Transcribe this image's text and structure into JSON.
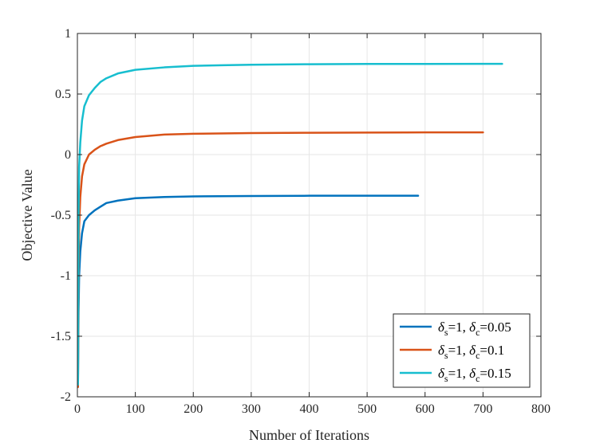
{
  "chart_data": {
    "type": "line",
    "title": "",
    "xlabel": "Number of Iterations",
    "ylabel": "Objective Value",
    "xlim": [
      0,
      800
    ],
    "ylim": [
      -2,
      1
    ],
    "xticks": [
      "0",
      "100",
      "200",
      "300",
      "400",
      "500",
      "600",
      "700",
      "800"
    ],
    "yticks": [
      "1",
      "0.5",
      "0",
      "-0.5",
      "-1",
      "-1.5",
      "-2"
    ],
    "grid": true,
    "legend_position": "bottom-right",
    "series": [
      {
        "delta_s": "1",
        "delta_c": "0.05",
        "color": "#0072BD",
        "x": [
          1,
          2,
          3,
          5,
          8,
          12,
          20,
          30,
          40,
          50,
          70,
          100,
          150,
          200,
          300,
          400,
          500,
          588
        ],
        "y": [
          -1.9,
          -1.3,
          -1.0,
          -0.8,
          -0.65,
          -0.55,
          -0.5,
          -0.46,
          -0.43,
          -0.4,
          -0.38,
          -0.36,
          -0.35,
          -0.345,
          -0.342,
          -0.34,
          -0.34,
          -0.34
        ]
      },
      {
        "delta_s": "1",
        "delta_c": "0.1",
        "color": "#D95319",
        "x": [
          1,
          2,
          3,
          5,
          8,
          12,
          20,
          30,
          40,
          50,
          70,
          100,
          150,
          200,
          300,
          400,
          500,
          600,
          700
        ],
        "y": [
          -1.92,
          -1.0,
          -0.6,
          -0.35,
          -0.18,
          -0.08,
          0.0,
          0.04,
          0.07,
          0.09,
          0.12,
          0.145,
          0.165,
          0.172,
          0.178,
          0.18,
          0.182,
          0.183,
          0.183
        ]
      },
      {
        "delta_s": "1",
        "delta_c": "0.15",
        "color": "#17BECF",
        "x": [
          1,
          2,
          3,
          5,
          8,
          12,
          20,
          30,
          40,
          50,
          70,
          100,
          150,
          200,
          250,
          300,
          400,
          500,
          600,
          700,
          733
        ],
        "y": [
          -1.9,
          -0.5,
          -0.1,
          0.1,
          0.28,
          0.4,
          0.49,
          0.55,
          0.6,
          0.63,
          0.67,
          0.7,
          0.72,
          0.733,
          0.738,
          0.742,
          0.746,
          0.748,
          0.748,
          0.749,
          0.749
        ]
      }
    ]
  }
}
